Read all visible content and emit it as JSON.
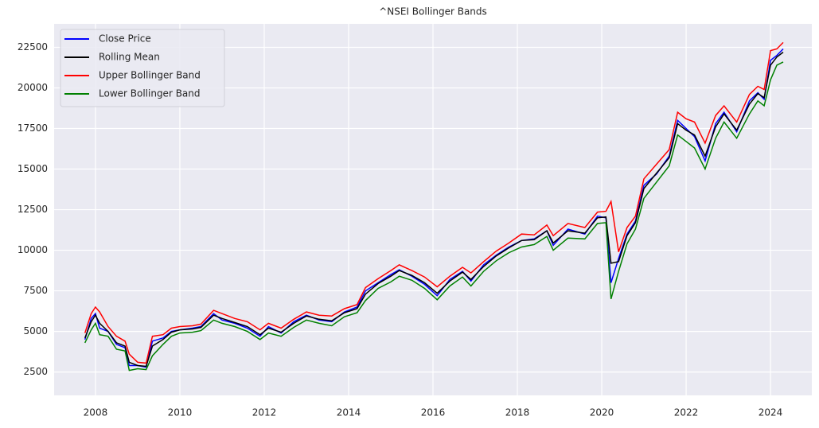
{
  "chart_data": {
    "type": "line",
    "title": "^NSEI Bollinger Bands",
    "x": [
      2007.75,
      2007.9,
      2008.0,
      2008.1,
      2008.3,
      2008.5,
      2008.7,
      2008.8,
      2009.0,
      2009.2,
      2009.35,
      2009.6,
      2009.8,
      2010.0,
      2010.3,
      2010.5,
      2010.8,
      2011.0,
      2011.3,
      2011.6,
      2011.9,
      2012.1,
      2012.4,
      2012.7,
      2013.0,
      2013.3,
      2013.6,
      2013.9,
      2014.2,
      2014.4,
      2014.7,
      2015.0,
      2015.2,
      2015.5,
      2015.8,
      2016.1,
      2016.4,
      2016.7,
      2016.9,
      2017.2,
      2017.5,
      2017.8,
      2018.1,
      2018.4,
      2018.7,
      2018.85,
      2019.2,
      2019.6,
      2019.9,
      2020.1,
      2020.22,
      2020.4,
      2020.6,
      2020.8,
      2021.0,
      2021.3,
      2021.6,
      2021.8,
      2022.0,
      2022.2,
      2022.45,
      2022.7,
      2022.9,
      2023.2,
      2023.5,
      2023.7,
      2023.85,
      2024.0,
      2024.15,
      2024.3
    ],
    "series": [
      {
        "name": "Close Price",
        "color": "#0000ff",
        "values": [
          4500,
          5800,
          6100,
          5200,
          5000,
          4200,
          4000,
          2900,
          2900,
          2800,
          4400,
          4600,
          5000,
          5100,
          5200,
          5300,
          6100,
          5700,
          5500,
          5200,
          4700,
          5300,
          4900,
          5600,
          6000,
          5700,
          5600,
          6200,
          6500,
          7500,
          8000,
          8500,
          8800,
          8400,
          7900,
          7200,
          8200,
          8700,
          8100,
          9100,
          9700,
          10200,
          10600,
          10700,
          11200,
          10300,
          11300,
          11000,
          12100,
          12000,
          8000,
          9500,
          11000,
          11800,
          14000,
          14700,
          15800,
          18000,
          17500,
          17000,
          15500,
          17800,
          18500,
          17300,
          19200,
          19700,
          19300,
          21700,
          22000,
          22400
        ]
      },
      {
        "name": "Rolling Mean",
        "color": "#000000",
        "values": [
          4600,
          5600,
          6000,
          5500,
          5000,
          4300,
          4100,
          3100,
          2900,
          2850,
          4100,
          4500,
          4950,
          5100,
          5150,
          5250,
          6000,
          5800,
          5550,
          5300,
          4800,
          5200,
          4950,
          5500,
          5950,
          5750,
          5650,
          6150,
          6400,
          7300,
          7950,
          8400,
          8750,
          8450,
          8000,
          7350,
          8100,
          8650,
          8200,
          9000,
          9650,
          10150,
          10600,
          10650,
          11200,
          10450,
          11200,
          11050,
          12000,
          12050,
          9200,
          9300,
          10900,
          11700,
          13800,
          14750,
          15700,
          17800,
          17400,
          17100,
          15800,
          17600,
          18400,
          17400,
          19000,
          19650,
          19400,
          21400,
          21900,
          22200
        ]
      },
      {
        "name": "Upper Bollinger Band",
        "color": "#ff0000",
        "values": [
          4900,
          6100,
          6500,
          6200,
          5300,
          4700,
          4400,
          3600,
          3100,
          3050,
          4700,
          4800,
          5200,
          5300,
          5350,
          5450,
          6300,
          6100,
          5800,
          5600,
          5100,
          5500,
          5200,
          5750,
          6200,
          6000,
          5950,
          6400,
          6650,
          7700,
          8250,
          8750,
          9100,
          8750,
          8350,
          7750,
          8400,
          8950,
          8600,
          9300,
          9950,
          10450,
          11000,
          10950,
          11550,
          10900,
          11650,
          11400,
          12350,
          12400,
          13000,
          9900,
          11400,
          12100,
          14400,
          15300,
          16200,
          18500,
          18100,
          17900,
          16600,
          18300,
          18900,
          17900,
          19600,
          20100,
          19900,
          22300,
          22400,
          22800
        ]
      },
      {
        "name": "Lower Bollinger Band",
        "color": "#008000",
        "values": [
          4300,
          5100,
          5500,
          4800,
          4700,
          3900,
          3800,
          2600,
          2700,
          2650,
          3500,
          4200,
          4700,
          4900,
          4950,
          5050,
          5700,
          5500,
          5300,
          5000,
          4500,
          4900,
          4700,
          5250,
          5700,
          5500,
          5350,
          5900,
          6150,
          6900,
          7650,
          8050,
          8400,
          8150,
          7650,
          6950,
          7800,
          8350,
          7800,
          8700,
          9350,
          9850,
          10200,
          10350,
          10850,
          10000,
          10750,
          10700,
          11650,
          11700,
          7000,
          8700,
          10400,
          11300,
          13200,
          14200,
          15200,
          17100,
          16700,
          16300,
          15000,
          16900,
          17900,
          16900,
          18400,
          19200,
          18900,
          20500,
          21400,
          21600
        ]
      }
    ],
    "xlim": [
      2007.02,
      2024.98
    ],
    "xticks": [
      2008,
      2010,
      2012,
      2014,
      2016,
      2018,
      2020,
      2022,
      2024
    ],
    "ylim": [
      1060,
      23945
    ],
    "yticks": [
      2500,
      5000,
      7500,
      10000,
      12500,
      15000,
      17500,
      20000,
      22500
    ],
    "grid": true,
    "legend": "upper-left"
  }
}
